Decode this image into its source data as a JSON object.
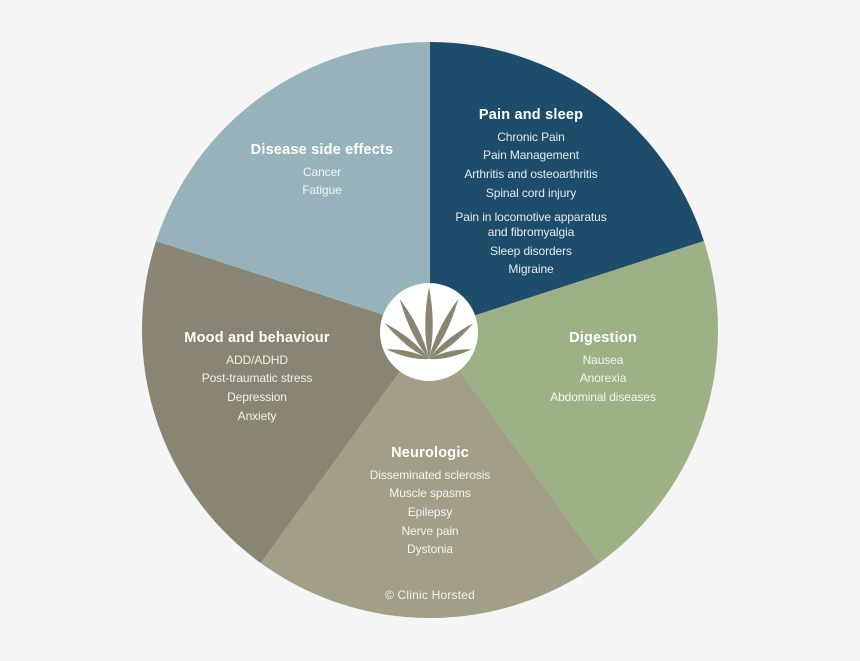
{
  "chart_data": {
    "type": "pie",
    "title": "",
    "legend_position": "on-slices",
    "background_color": "#f5f5f6",
    "center_icon": "cannabis-leaf",
    "center_icon_color": "#8a8571",
    "center_circle_color": "#ffffff",
    "credit": "© Clinic Horsted",
    "segments": [
      {
        "label": "Pain and sleep",
        "color": "#1e4d6c",
        "value_pct": 20,
        "angle_deg": 72,
        "items": [
          "Chronic Pain",
          "Pain Management",
          "Arthritis and osteoarthritis",
          "Spinal cord injury",
          "",
          "Pain in locomotive apparatus\nand fibromyalgia",
          "Sleep disorders",
          "Migraine"
        ]
      },
      {
        "label": "Digestion",
        "color": "#9db187",
        "value_pct": 20,
        "angle_deg": 72,
        "items": [
          "Nausea",
          "Anorexia",
          "Abdominal diseases"
        ]
      },
      {
        "label": "Neurologic",
        "color": "#a39e87",
        "value_pct": 20,
        "angle_deg": 72,
        "items": [
          "Disseminated sclerosis",
          "Muscle spasms",
          "Epilepsy",
          "Nerve pain",
          "Dystonia"
        ]
      },
      {
        "label": "Mood and behaviour",
        "color": "#8a8572",
        "value_pct": 20,
        "angle_deg": 72,
        "items": [
          "ADD/ADHD",
          "Post-traumatic stress",
          "Depression",
          "Anxiety"
        ]
      },
      {
        "label": "Disease side effects",
        "color": "#96b3bb",
        "value_pct": 20,
        "angle_deg": 72,
        "items": [
          "Cancer",
          "Fatigue"
        ]
      }
    ]
  }
}
